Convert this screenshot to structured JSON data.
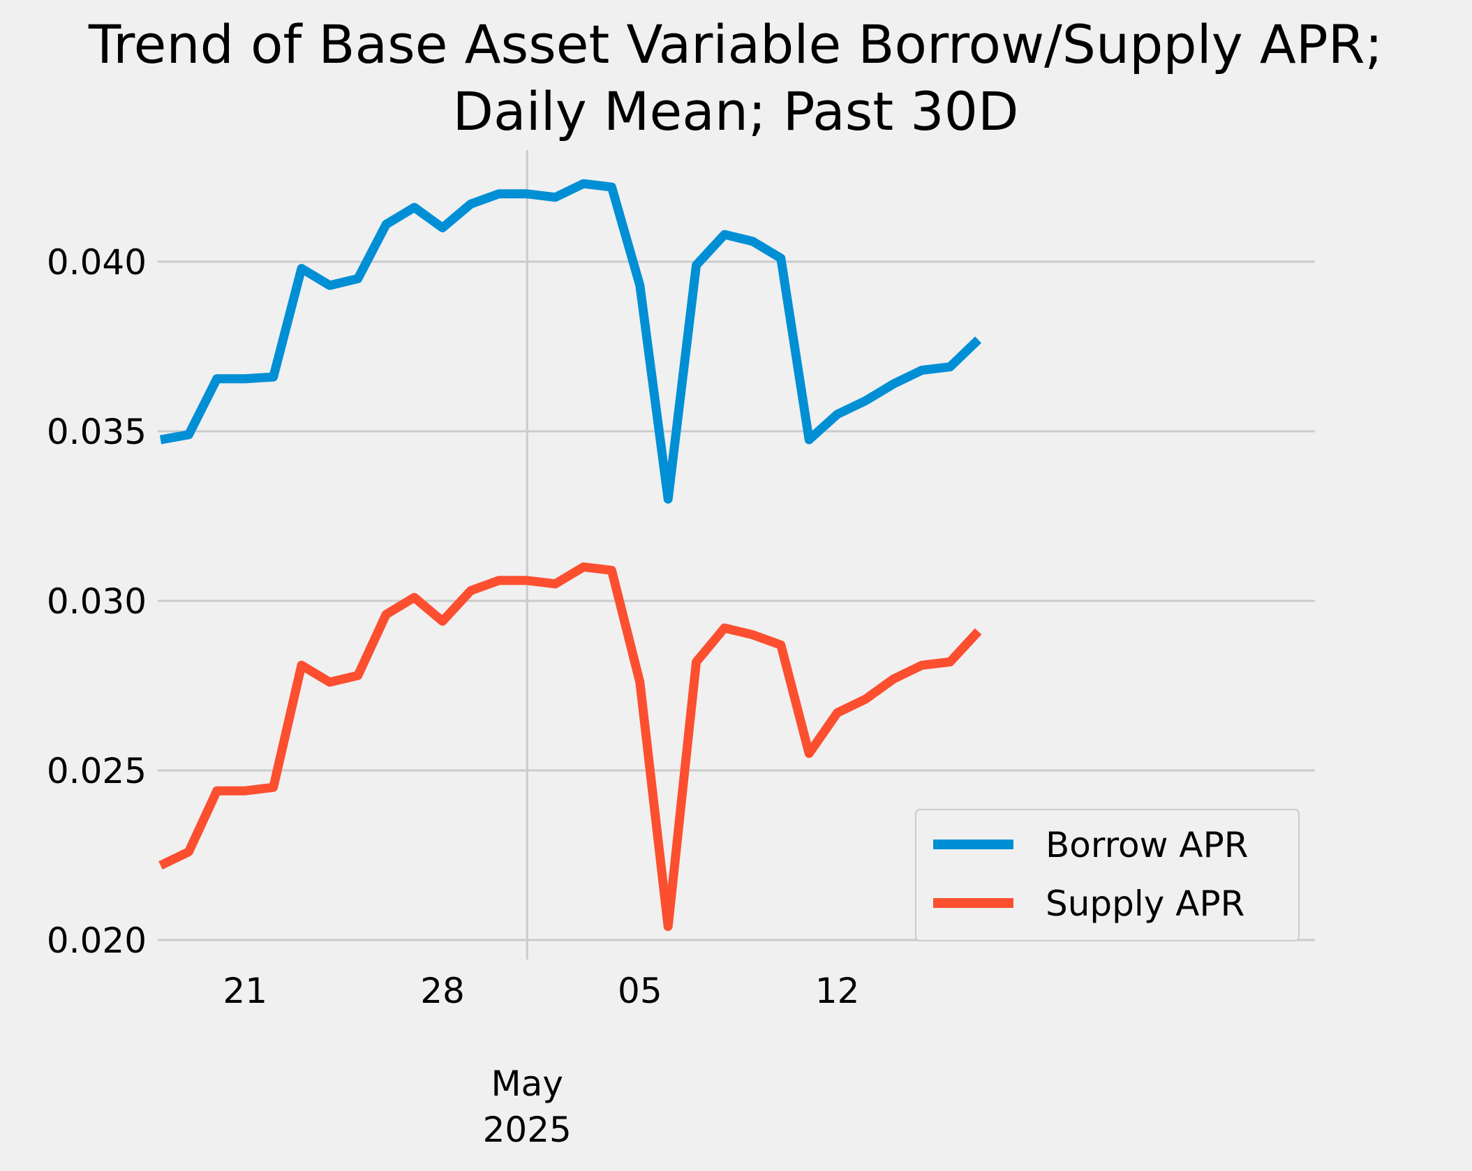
{
  "chart_data": {
    "type": "line",
    "title": "Trend of Base Asset Variable Borrow/Supply APR;",
    "subtitle": "Daily Mean; Past 30D",
    "xlabel": "",
    "ylabel": "",
    "x_start": "2025-04-17",
    "x_end": "2025-05-16",
    "ylim": [
      0.0195,
      0.0432
    ],
    "yticks": [
      {
        "value": 0.02,
        "label": "0.020"
      },
      {
        "value": 0.025,
        "label": "0.025"
      },
      {
        "value": 0.03,
        "label": "0.030"
      },
      {
        "value": 0.035,
        "label": "0.035"
      },
      {
        "value": 0.04,
        "label": "0.040"
      }
    ],
    "xticks": [
      {
        "date": "2025-04-21",
        "label": "21"
      },
      {
        "date": "2025-04-28",
        "label": "28"
      },
      {
        "date": "2025-05-05",
        "label": "05"
      },
      {
        "date": "2025-05-12",
        "label": "12"
      }
    ],
    "month_marker": {
      "date": "2025-05-01",
      "month": "May",
      "year": "2025"
    },
    "grid": true,
    "legend_position": "lower-right",
    "series": [
      {
        "name": "Borrow APR",
        "color": "#008fd5",
        "points": [
          {
            "x": "2025-04-18",
            "y": 0.03475
          },
          {
            "x": "2025-04-19",
            "y": 0.0349
          },
          {
            "x": "2025-04-20",
            "y": 0.03655
          },
          {
            "x": "2025-04-21",
            "y": 0.03655
          },
          {
            "x": "2025-04-22",
            "y": 0.0366
          },
          {
            "x": "2025-04-23",
            "y": 0.0398
          },
          {
            "x": "2025-04-24",
            "y": 0.0393
          },
          {
            "x": "2025-04-25",
            "y": 0.0395
          },
          {
            "x": "2025-04-26",
            "y": 0.0411
          },
          {
            "x": "2025-04-27",
            "y": 0.0416
          },
          {
            "x": "2025-04-28",
            "y": 0.041
          },
          {
            "x": "2025-04-29",
            "y": 0.0417
          },
          {
            "x": "2025-04-30",
            "y": 0.042
          },
          {
            "x": "2025-05-01",
            "y": 0.042
          },
          {
            "x": "2025-05-02",
            "y": 0.0419
          },
          {
            "x": "2025-05-03",
            "y": 0.0423
          },
          {
            "x": "2025-05-04",
            "y": 0.0422
          },
          {
            "x": "2025-05-05",
            "y": 0.0393
          },
          {
            "x": "2025-05-06",
            "y": 0.033
          },
          {
            "x": "2025-05-07",
            "y": 0.0399
          },
          {
            "x": "2025-05-08",
            "y": 0.0408
          },
          {
            "x": "2025-05-09",
            "y": 0.0406
          },
          {
            "x": "2025-05-10",
            "y": 0.0401
          },
          {
            "x": "2025-05-11",
            "y": 0.03475
          },
          {
            "x": "2025-05-12",
            "y": 0.0355
          },
          {
            "x": "2025-05-13",
            "y": 0.0359
          },
          {
            "x": "2025-05-14",
            "y": 0.0364
          },
          {
            "x": "2025-05-15",
            "y": 0.0368
          },
          {
            "x": "2025-05-16",
            "y": 0.0369
          },
          {
            "x": "2025-05-17",
            "y": 0.0377
          }
        ]
      },
      {
        "name": "Supply APR",
        "color": "#fc4f30",
        "points": [
          {
            "x": "2025-04-18",
            "y": 0.0222
          },
          {
            "x": "2025-04-19",
            "y": 0.0226
          },
          {
            "x": "2025-04-20",
            "y": 0.0244
          },
          {
            "x": "2025-04-21",
            "y": 0.0244
          },
          {
            "x": "2025-04-22",
            "y": 0.0245
          },
          {
            "x": "2025-04-23",
            "y": 0.0281
          },
          {
            "x": "2025-04-24",
            "y": 0.0276
          },
          {
            "x": "2025-04-25",
            "y": 0.0278
          },
          {
            "x": "2025-04-26",
            "y": 0.0296
          },
          {
            "x": "2025-04-27",
            "y": 0.0301
          },
          {
            "x": "2025-04-28",
            "y": 0.0294
          },
          {
            "x": "2025-04-29",
            "y": 0.0303
          },
          {
            "x": "2025-04-30",
            "y": 0.0306
          },
          {
            "x": "2025-05-01",
            "y": 0.0306
          },
          {
            "x": "2025-05-02",
            "y": 0.0305
          },
          {
            "x": "2025-05-03",
            "y": 0.031
          },
          {
            "x": "2025-05-04",
            "y": 0.0309
          },
          {
            "x": "2025-05-05",
            "y": 0.0276
          },
          {
            "x": "2025-05-06",
            "y": 0.0204
          },
          {
            "x": "2025-05-07",
            "y": 0.0282
          },
          {
            "x": "2025-05-08",
            "y": 0.0292
          },
          {
            "x": "2025-05-09",
            "y": 0.029
          },
          {
            "x": "2025-05-10",
            "y": 0.0287
          },
          {
            "x": "2025-05-11",
            "y": 0.0255
          },
          {
            "x": "2025-05-12",
            "y": 0.0267
          },
          {
            "x": "2025-05-13",
            "y": 0.0271
          },
          {
            "x": "2025-05-14",
            "y": 0.0277
          },
          {
            "x": "2025-05-15",
            "y": 0.0281
          },
          {
            "x": "2025-05-16",
            "y": 0.0282
          },
          {
            "x": "2025-05-17",
            "y": 0.0291
          }
        ]
      }
    ]
  }
}
